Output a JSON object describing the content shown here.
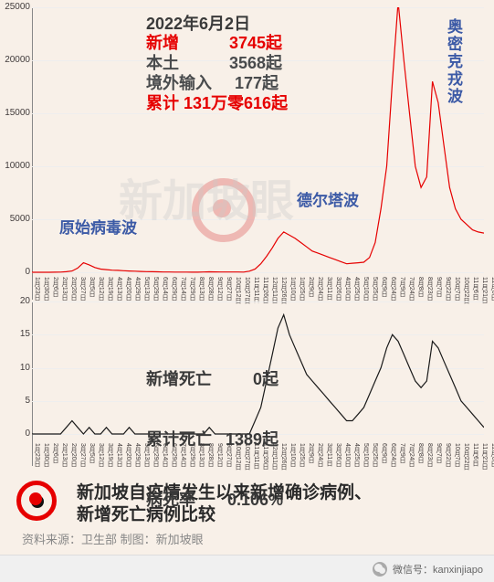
{
  "date": "2022年6月2日",
  "stats": {
    "new_label": "新增",
    "new_value": "3745起",
    "local_label": "本土",
    "local_value": "3568起",
    "imported_label": "境外输入",
    "imported_value": "177起",
    "total_label": "累计 131万零616起"
  },
  "waves": {
    "original": "原始病毒波",
    "delta": "德尔塔波",
    "omicron": "奥密克戎波"
  },
  "deaths": {
    "new_label": "新增死亡",
    "new_value": "0起",
    "total_label": "累计死亡",
    "total_value": "1389起",
    "rate_label": "病死率",
    "rate_value": "0.106%"
  },
  "footer": {
    "title1": "新加坡自疫情发生以来新增确诊病例、",
    "title2": "新增死亡病例比较",
    "source": "资料来源：卫生部    制图：新加坡眼"
  },
  "wechat": {
    "label": "微信号：kanxinjiapo"
  },
  "watermark": "新加坡眼",
  "charts": {
    "cases": {
      "type": "line",
      "color": "#e60000",
      "ylim": [
        0,
        25000
      ],
      "ytick_step": 5000,
      "yticks": [
        "0",
        "5000",
        "10000",
        "15000",
        "20000",
        "25000"
      ],
      "background": "#f8f0e8",
      "line_width": 1.2,
      "data_approx": [
        0,
        0,
        0,
        0,
        5,
        20,
        50,
        120,
        400,
        900,
        700,
        450,
        300,
        250,
        200,
        180,
        150,
        120,
        100,
        80,
        60,
        50,
        40,
        30,
        25,
        20,
        18,
        15,
        12,
        10,
        30,
        40,
        35,
        30,
        28,
        25,
        22,
        20,
        100,
        300,
        800,
        1500,
        2300,
        3200,
        3800,
        3500,
        3200,
        2800,
        2400,
        2000,
        1800,
        1600,
        1400,
        1200,
        1000,
        800,
        850,
        900,
        950,
        1400,
        2800,
        6000,
        10000,
        18000,
        25500,
        20000,
        15000,
        10000,
        8000,
        9000,
        18000,
        16000,
        12000,
        8000,
        6000,
        5000,
        4500,
        4000,
        3800,
        3700
      ]
    },
    "deaths": {
      "type": "line",
      "color": "#1a1a1a",
      "ylim": [
        0,
        20
      ],
      "ytick_step": 5,
      "yticks": [
        "0",
        "5",
        "10",
        "15",
        "20"
      ],
      "line_width": 1.2,
      "data_approx": [
        0,
        0,
        0,
        0,
        0,
        0,
        1,
        2,
        1,
        0,
        1,
        0,
        0,
        1,
        0,
        0,
        0,
        1,
        0,
        0,
        0,
        0,
        0,
        0,
        0,
        0,
        0,
        0,
        0,
        0,
        0,
        1,
        0,
        0,
        0,
        0,
        0,
        0,
        0,
        2,
        4,
        8,
        12,
        16,
        18,
        15,
        13,
        11,
        9,
        8,
        7,
        6,
        5,
        4,
        3,
        2,
        2,
        3,
        4,
        6,
        8,
        10,
        13,
        15,
        14,
        12,
        10,
        8,
        7,
        8,
        14,
        13,
        11,
        9,
        7,
        5,
        4,
        3,
        2,
        1
      ]
    },
    "x_labels": [
      "1月23日",
      "1月30日",
      "2月6日",
      "2月13日",
      "2月20日",
      "3月27日",
      "3月5日",
      "3月12日",
      "3月19日",
      "4月13日",
      "4月20日",
      "4月29日",
      "5月13日",
      "5月29日",
      "6月14日",
      "6月29日",
      "7月14日",
      "7月29日",
      "8月13日",
      "8月28日",
      "9月12日",
      "9月27日",
      "10月12日",
      "10月27日",
      "11月11日",
      "11月26日",
      "12月11日",
      "12月26日",
      "1月10日",
      "1月25日",
      "2月9日",
      "2月24日",
      "3月11日",
      "3月26日",
      "4月10日",
      "4月25日",
      "5月10日",
      "5月25日",
      "6月9日",
      "6月24日",
      "7月9日",
      "7月24日",
      "8月8日",
      "8月23日",
      "9月7日",
      "9月22日",
      "10月7日",
      "10月22日",
      "11月6日",
      "11月21日",
      "12月6日",
      "12月21日",
      "1月5日",
      "1月20日",
      "2月4日",
      "2月19日",
      "3月6日",
      "3月21日",
      "4月5日",
      "4月16日",
      "5月8日",
      "5月30日"
    ]
  }
}
